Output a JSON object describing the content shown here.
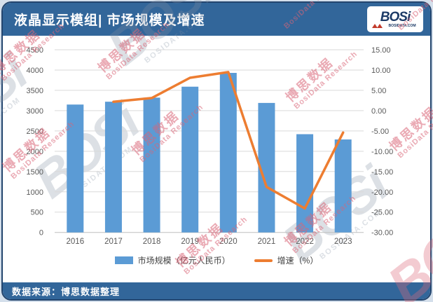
{
  "header": {
    "title": "液晶显示模组| 市场规模及增速",
    "logo": {
      "brand": "BOSi",
      "domain": "BOSIDATA.COM"
    }
  },
  "footer": {
    "source": "数据来源：博思数据整理"
  },
  "watermark": {
    "cn": "博思数据",
    "en": "BosiData Research",
    "brand": "BOSi",
    "domain": "BOSIDATA.COM"
  },
  "colors": {
    "bar": "#5b9bd5",
    "line": "#ed7d31",
    "band": "#32669a",
    "grid": "#d9d9d9",
    "axis": "#bfbfbf",
    "tick_text": "#595959"
  },
  "chart_data": {
    "type": "bar+line",
    "title": "液晶显示模组| 市场规模及增速",
    "categories": [
      "2016",
      "2017",
      "2018",
      "2019",
      "2020",
      "2021",
      "2022",
      "2023"
    ],
    "series": [
      {
        "name": "市场规模（亿元人民币）",
        "type": "bar",
        "axis": "left",
        "color": "#5b9bd5",
        "values": [
          3150,
          3220,
          3320,
          3590,
          3930,
          3190,
          2420,
          2290
        ]
      },
      {
        "name": "增速（%）",
        "type": "line",
        "axis": "right",
        "color": "#ed7d31",
        "values": [
          null,
          2.2,
          3.1,
          8.1,
          9.5,
          -18.8,
          -24.1,
          -5.4
        ]
      }
    ],
    "left_axis": {
      "min": 0,
      "max": 4500,
      "step": 500,
      "tick_labels": [
        "4500",
        "4000",
        "3500",
        "3000",
        "2500",
        "2000",
        "1500",
        "1000",
        "500",
        "0"
      ]
    },
    "right_axis": {
      "min": -30,
      "max": 15,
      "step": 5,
      "tick_labels": [
        "15.00",
        "10.00",
        "5.00",
        "0.00",
        "-5.00",
        "-10.00",
        "-15.00",
        "-20.00",
        "-25.00",
        "-30.00"
      ]
    },
    "grid": true,
    "legend_position": "bottom"
  }
}
